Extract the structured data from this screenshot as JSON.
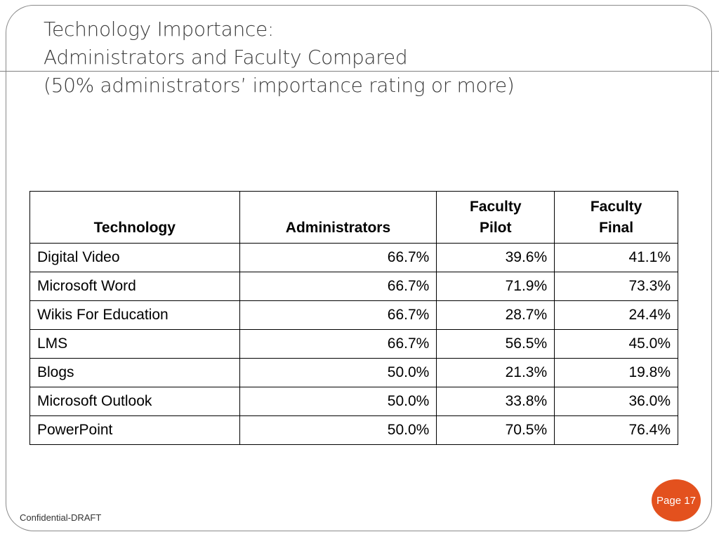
{
  "slide": {
    "title_lines": [
      "Technology Importance:",
      "Administrators and Faculty Compared",
      "(50% administrators’ importance rating or more)"
    ],
    "footer": "Confidential-DRAFT",
    "page_label": "Page 17"
  },
  "table": {
    "headers": [
      [
        "Technology"
      ],
      [
        "Administrators"
      ],
      [
        "Faculty",
        "Pilot"
      ],
      [
        "Faculty",
        "Final"
      ]
    ],
    "rows": [
      [
        "Digital Video",
        "66.7%",
        "39.6%",
        "41.1%"
      ],
      [
        "Microsoft Word",
        "66.7%",
        "71.9%",
        "73.3%"
      ],
      [
        "Wikis For Education",
        "66.7%",
        "28.7%",
        "24.4%"
      ],
      [
        "LMS",
        "66.7%",
        "56.5%",
        "45.0%"
      ],
      [
        "Blogs",
        "50.0%",
        "21.3%",
        "19.8%"
      ],
      [
        "Microsoft Outlook",
        "50.0%",
        "33.8%",
        "36.0%"
      ],
      [
        "PowerPoint",
        "50.0%",
        "70.5%",
        "76.4%"
      ]
    ]
  },
  "colors": {
    "badge": "#e3511e",
    "title_text": "#3b3b3b",
    "frame": "#8a8a8a"
  }
}
